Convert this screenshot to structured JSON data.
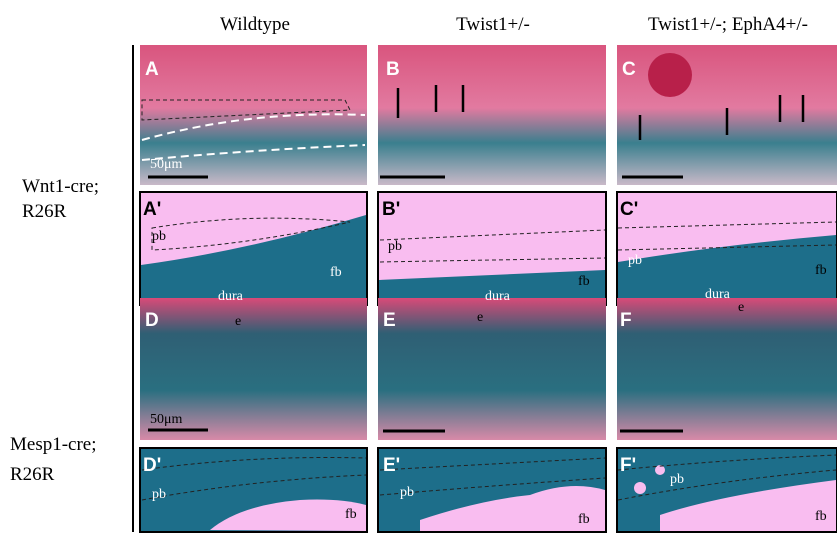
{
  "column_headers": [
    "Wildtype",
    "Twist1+/-",
    "Twist1+/-; EphA4+/-"
  ],
  "row_labels": [
    {
      "lines": [
        "Wnt1-cre;",
        "R26R"
      ]
    },
    {
      "lines": [
        "Mesp1-cre;",
        "R26R"
      ]
    }
  ],
  "panels": [
    {
      "letter": "A",
      "labels": [
        "50μm"
      ]
    },
    {
      "letter": "B"
    },
    {
      "letter": "C"
    },
    {
      "letter": "A'",
      "labels": [
        "pb",
        "fb",
        "dura"
      ]
    },
    {
      "letter": "B'",
      "labels": [
        "pb",
        "fb",
        "dura"
      ]
    },
    {
      "letter": "C'",
      "labels": [
        "pb",
        "fb",
        "dura"
      ]
    },
    {
      "letter": "D",
      "labels": [
        "e",
        "50μm"
      ]
    },
    {
      "letter": "E",
      "labels": [
        "e"
      ]
    },
    {
      "letter": "F",
      "labels": [
        "e"
      ]
    },
    {
      "letter": "D'",
      "labels": [
        "pb",
        "fb"
      ]
    },
    {
      "letter": "E'",
      "labels": [
        "pb",
        "fb"
      ]
    },
    {
      "letter": "F'",
      "labels": [
        "pb",
        "fb"
      ]
    }
  ]
}
